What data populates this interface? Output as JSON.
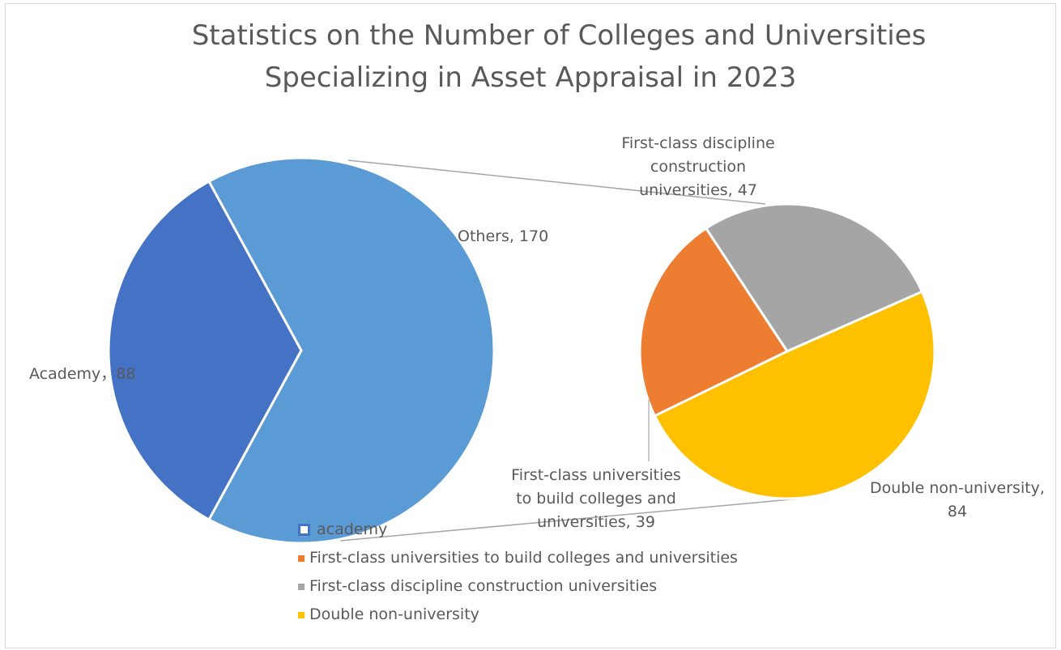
{
  "chart_data": {
    "type": "pie",
    "subtype": "pie-of-pie",
    "title_lines": [
      "Statistics on the Number of Colleges and Universities",
      "Specializing in Asset Appraisal in 2023"
    ],
    "main_pie": {
      "slices": [
        {
          "label": "Academy",
          "value": 88,
          "color": "#4472c4",
          "data_label": "Academy，88"
        },
        {
          "label": "Others",
          "value": 170,
          "color": "#5b9bd5",
          "data_label": "Others, 170"
        }
      ]
    },
    "secondary_pie": {
      "slices": [
        {
          "label": "First-class universities to build colleges and universities",
          "value": 39,
          "color": "#ed7d31",
          "data_label_lines": [
            "First-class universities",
            "to build colleges and",
            "universities, 39"
          ]
        },
        {
          "label": "First-class discipline construction universities",
          "value": 47,
          "color": "#a5a5a5",
          "data_label_lines": [
            "First-class discipline",
            "construction",
            "universities, 47"
          ]
        },
        {
          "label": "Double non-university",
          "value": 84,
          "color": "#ffc000",
          "data_label_lines": [
            "Double non-university,",
            "84"
          ]
        }
      ]
    },
    "legend": {
      "placement": "bottom",
      "entries": [
        {
          "label": "academy",
          "color": "#4472c4",
          "marker": "hollow-square"
        },
        {
          "label": "First-class universities to build colleges and universities",
          "color": "#ed7d31",
          "marker": "square"
        },
        {
          "label": "First-class discipline construction universities",
          "color": "#a5a5a5",
          "marker": "square"
        },
        {
          "label": "Double non-university",
          "color": "#ffc000",
          "marker": "square"
        }
      ]
    }
  }
}
